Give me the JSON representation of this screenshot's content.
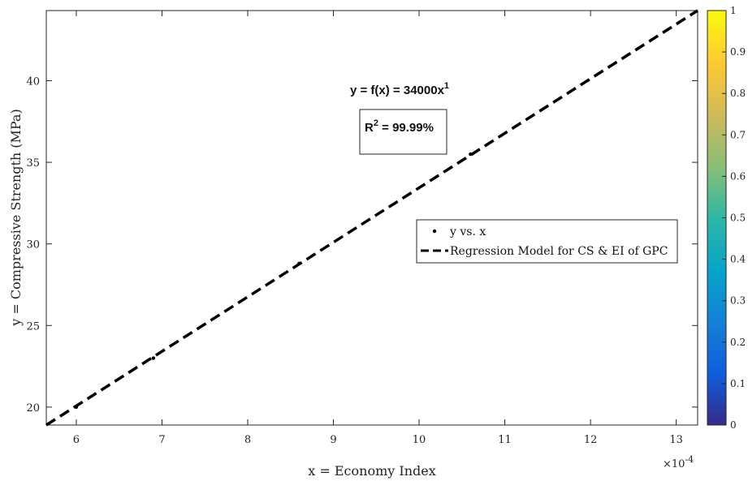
{
  "chart_data": {
    "type": "scatter",
    "xlabel": "x = Economy Index",
    "ylabel": "y = Compressive Strength (MPa)",
    "x_multiplier_base": "×10",
    "x_multiplier_exp": "-4",
    "xlim": [
      5.65,
      13.25
    ],
    "ylim": [
      18.9,
      44.3
    ],
    "x_ticks": [
      6,
      7,
      8,
      9,
      10,
      11,
      12,
      13
    ],
    "y_ticks": [
      20,
      25,
      30,
      35,
      40
    ],
    "points": [
      {
        "x": 6.0,
        "y": 20.0
      },
      {
        "x": 6.9,
        "y": 23.0
      },
      {
        "x": 8.6,
        "y": 28.8
      },
      {
        "x": 10.6,
        "y": 35.5
      }
    ],
    "regression": {
      "x": [
        5.65,
        13.25
      ],
      "y": [
        18.9,
        44.3
      ]
    },
    "annotation_equation_main": "y = f(x) = 34000x",
    "annotation_equation_exp": "1",
    "annotation_r2_main": "R",
    "annotation_r2_exp": "2",
    "annotation_r2_value": " = 99.99%",
    "legend": {
      "entries": [
        "y vs. x",
        "Regression Model for CS & EI of GPC"
      ],
      "position": "center-right"
    },
    "colorbar": {
      "ticks": [
        "0",
        "0.1",
        "0.2",
        "0.3",
        "0.4",
        "0.5",
        "0.6",
        "0.7",
        "0.8",
        "0.9",
        "1"
      ],
      "colormap": "parula"
    },
    "grid": false
  }
}
